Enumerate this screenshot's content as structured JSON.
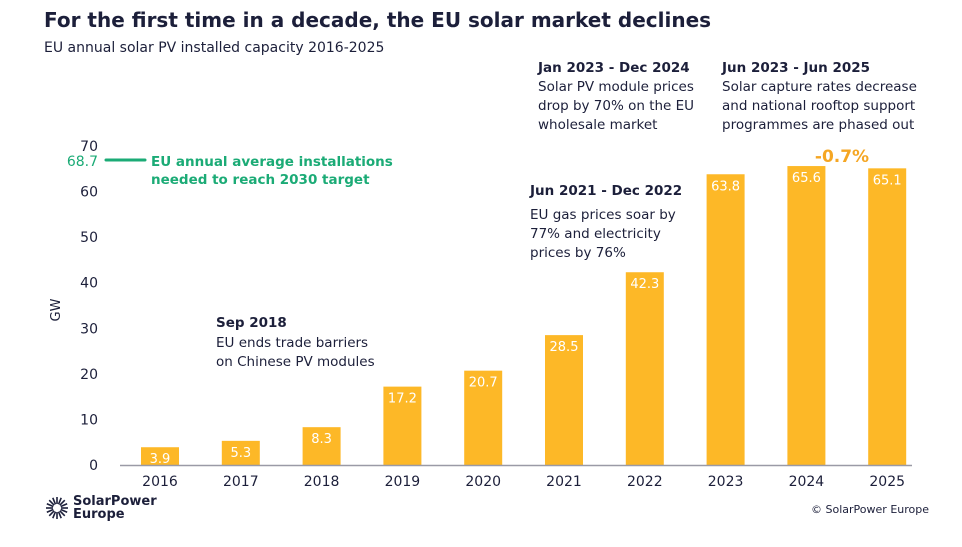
{
  "chart_data": {
    "type": "bar",
    "title": "For the first time in a decade, the EU solar market declines",
    "subtitle": "EU annual solar PV installed capacity 2016-2025",
    "ylabel": "GW",
    "xlabel": "",
    "ylim": [
      0,
      70
    ],
    "yticks": [
      0,
      10,
      20,
      30,
      40,
      50,
      60,
      70
    ],
    "categories": [
      "2016",
      "2017",
      "2018",
      "2019",
      "2020",
      "2021",
      "2022",
      "2023",
      "2024",
      "2025"
    ],
    "values": [
      3.9,
      5.3,
      8.3,
      17.2,
      20.7,
      28.5,
      42.3,
      63.8,
      65.6,
      65.1
    ],
    "data_labels": [
      "3.9",
      "5.3",
      "8.3",
      "17.2",
      "20.7",
      "28.5",
      "42.3",
      "63.8",
      "65.6",
      "65.1"
    ],
    "grid": false,
    "colors": {
      "bar": "#fdb827",
      "text": "#1c1f3a",
      "target": "#1bab76",
      "change": "#f5a623",
      "bar_label": "#ffffff"
    },
    "reference_line": {
      "value": 68.7,
      "label": "68.7",
      "text": [
        "EU annual average installations",
        "needed to reach 2030 target"
      ]
    },
    "change_label": "-0.7%",
    "annotations": [
      {
        "title": "Sep 2018",
        "lines": [
          "EU ends trade barriers",
          "on Chinese PV modules"
        ]
      },
      {
        "title": "Jun 2021 - Dec 2022",
        "lines": [
          "EU gas prices soar by",
          "77% and electricity",
          "prices by 76%"
        ]
      },
      {
        "title": "Jan 2023 - Dec 2024",
        "lines": [
          "Solar PV module prices",
          "drop by 70% on the EU",
          "wholesale market"
        ]
      },
      {
        "title": "Jun 2023 - Jun 2025",
        "lines": [
          "Solar capture rates decrease",
          "and national rooftop support",
          "programmes are phased out"
        ]
      }
    ]
  },
  "footer": {
    "logo_text": [
      "SolarPower",
      "Europe"
    ],
    "copyright": "© SolarPower Europe"
  }
}
